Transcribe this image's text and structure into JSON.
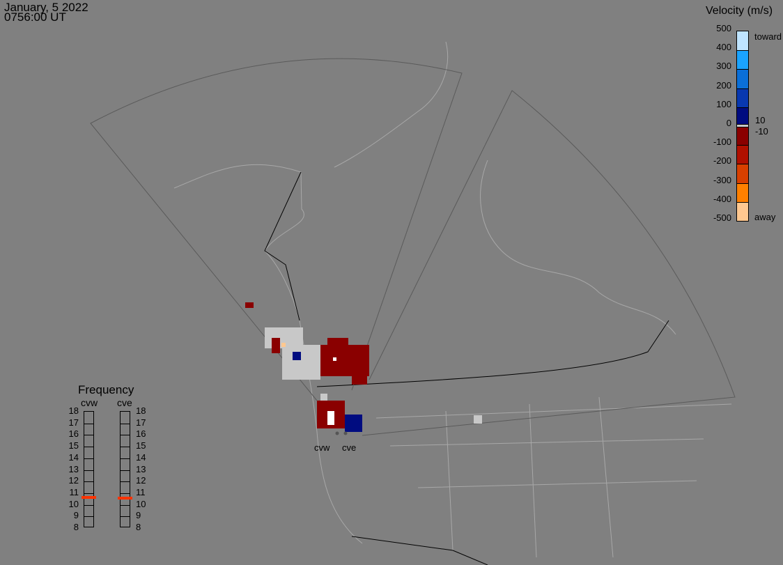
{
  "header": {
    "date": "January, 5 2022",
    "time": "0756:00 UT"
  },
  "colorbar": {
    "title": "Velocity (m/s)",
    "ticks": [
      "500",
      "400",
      "300",
      "200",
      "100",
      "0",
      "-100",
      "-200",
      "-300",
      "-400",
      "-500"
    ],
    "colors": [
      "#bfe4ff",
      "#1aa3ff",
      "#0a6fd8",
      "#0838b0",
      "#000c80",
      "#8a0000",
      "#b01000",
      "#d84000",
      "#ff8000",
      "#ffc890"
    ],
    "ground_scatter_color": "#c8c8c8",
    "toward": "toward",
    "away": "away",
    "pos_threshold": "10",
    "neg_threshold": "-10"
  },
  "frequency": {
    "title": "Frequency",
    "unit_range": [
      8,
      18
    ],
    "ticks": [
      "18",
      "17",
      "16",
      "15",
      "14",
      "13",
      "12",
      "11",
      "10",
      "9",
      "8"
    ],
    "radars": [
      {
        "name": "cvw",
        "value_mhz": 10.6
      },
      {
        "name": "cve",
        "value_mhz": 10.5
      }
    ],
    "marker_color": "#ff3300"
  },
  "radars": {
    "west": "cvw",
    "east": "cve"
  }
}
